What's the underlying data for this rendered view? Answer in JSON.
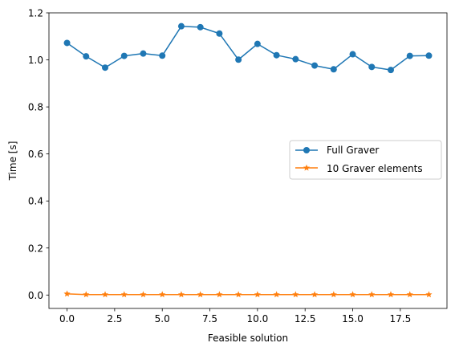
{
  "chart_data": {
    "type": "line",
    "title": "",
    "xlabel": "Feasible solution",
    "ylabel": "Time [s]",
    "xlim": [
      -0.95,
      19.95
    ],
    "ylim": [
      -0.057,
      1.2
    ],
    "xticks": [
      0.0,
      2.5,
      5.0,
      7.5,
      10.0,
      12.5,
      15.0,
      17.5
    ],
    "xtick_labels": [
      "0.0",
      "2.5",
      "5.0",
      "7.5",
      "10.0",
      "12.5",
      "15.0",
      "17.5"
    ],
    "yticks": [
      0.0,
      0.2,
      0.4,
      0.6,
      0.8,
      1.0,
      1.2
    ],
    "ytick_labels": [
      "0.0",
      "0.2",
      "0.4",
      "0.6",
      "0.8",
      "1.0",
      "1.2"
    ],
    "grid": false,
    "legend_position": "center-right",
    "x": [
      0,
      1,
      2,
      3,
      4,
      5,
      6,
      7,
      8,
      9,
      10,
      11,
      12,
      13,
      14,
      15,
      16,
      17,
      18,
      19
    ],
    "series": [
      {
        "name": "Full Graver",
        "color": "#1f77b4",
        "marker": "circle",
        "values": [
          1.072,
          1.015,
          0.967,
          1.017,
          1.027,
          1.018,
          1.143,
          1.139,
          1.112,
          1.001,
          1.068,
          1.02,
          1.003,
          0.976,
          0.96,
          1.024,
          0.97,
          0.957,
          1.017,
          1.018
        ]
      },
      {
        "name": "10 Graver elements",
        "color": "#ff7f0e",
        "marker": "star",
        "values": [
          0.005,
          0.002,
          0.002,
          0.002,
          0.002,
          0.002,
          0.002,
          0.002,
          0.002,
          0.002,
          0.002,
          0.002,
          0.002,
          0.002,
          0.002,
          0.002,
          0.002,
          0.002,
          0.002,
          0.002
        ]
      }
    ]
  }
}
